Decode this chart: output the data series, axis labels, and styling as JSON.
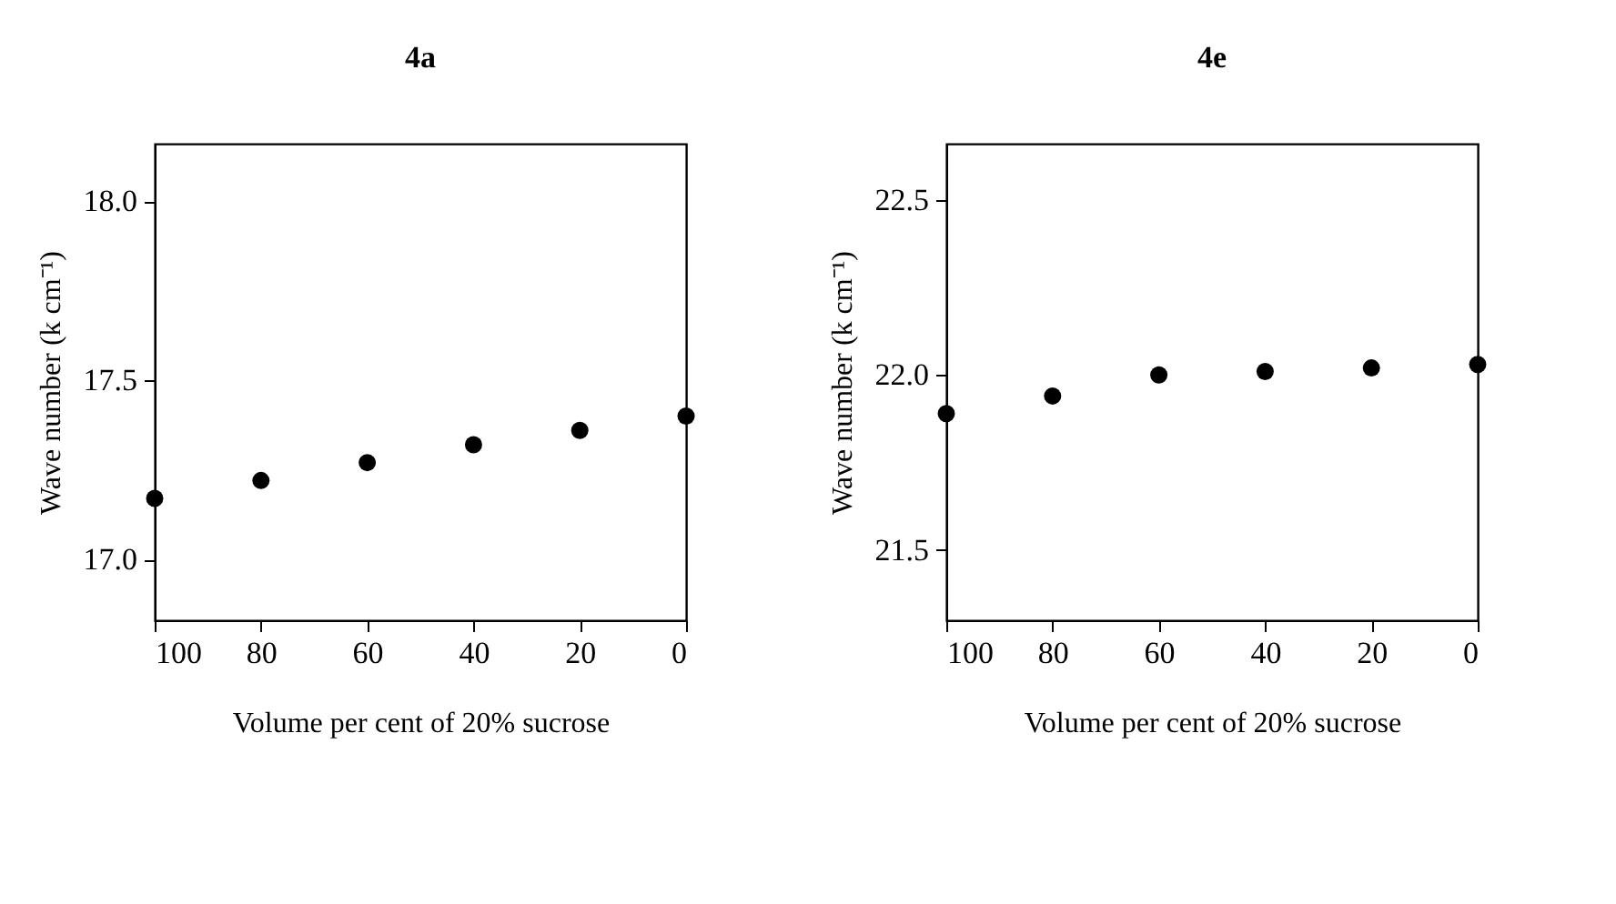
{
  "chart_data": [
    {
      "type": "scatter",
      "title": "4a",
      "xlabel": "Volume per cent of 20% sucrose",
      "ylabel": "Wave number (k cm⁻¹)",
      "x": [
        100,
        80,
        60,
        40,
        20,
        0
      ],
      "series": [
        {
          "color": "#000000",
          "values": [
            17.17,
            17.22,
            17.27,
            17.32,
            17.36,
            17.4
          ]
        }
      ],
      "xlim": [
        100,
        0
      ],
      "xticks": [
        100,
        80,
        60,
        40,
        20,
        0
      ],
      "ylim": [
        16.83,
        18.16
      ],
      "yticks": [
        {
          "value": 17,
          "label": "17.0"
        },
        {
          "value": 17.5,
          "label": "17.5"
        },
        {
          "value": 18,
          "label": "18.0"
        }
      ],
      "grid": false,
      "marker": "circle"
    },
    {
      "type": "scatter",
      "title": "4e",
      "xlabel": "Volume per cent of 20% sucrose",
      "ylabel": "Wave number (k cm⁻¹)",
      "x": [
        100,
        80,
        60,
        40,
        20,
        0
      ],
      "series": [
        {
          "color": "#000000",
          "values": [
            21.89,
            21.94,
            22.0,
            22.01,
            22.02,
            22.03
          ]
        }
      ],
      "xlim": [
        100,
        0
      ],
      "xticks": [
        100,
        80,
        60,
        40,
        20,
        0
      ],
      "ylim": [
        21.3,
        22.66
      ],
      "yticks": [
        {
          "value": 21.5,
          "label": "21.5"
        },
        {
          "value": 22,
          "label": "22.0"
        },
        {
          "value": 22.5,
          "label": "22.5"
        }
      ],
      "grid": false,
      "marker": "circle"
    }
  ]
}
